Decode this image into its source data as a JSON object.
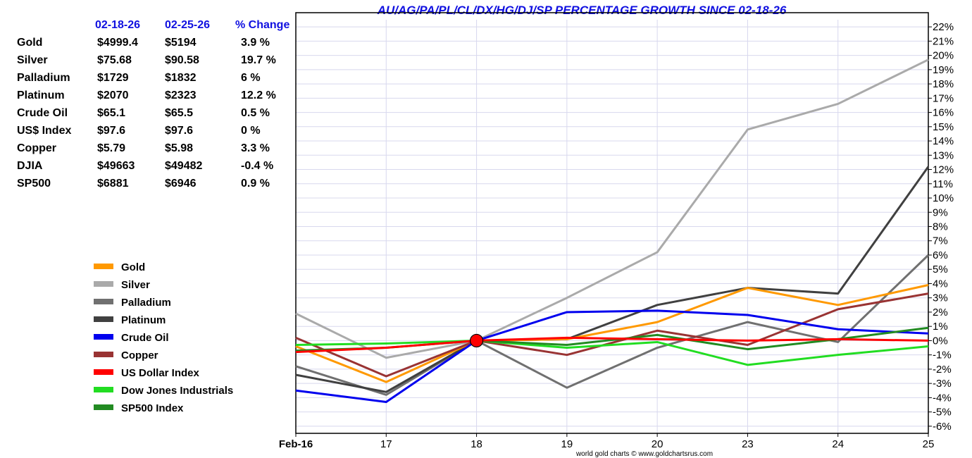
{
  "table": {
    "headers": [
      "02-18-26",
      "02-25-26",
      "% Change"
    ],
    "rows": [
      {
        "name": "Gold",
        "start": "$4999.4",
        "end": "$5194",
        "change": "3.9 %"
      },
      {
        "name": "Silver",
        "start": "$75.68",
        "end": "$90.58",
        "change": "19.7 %"
      },
      {
        "name": "Palladium",
        "start": "$1729",
        "end": "$1832",
        "change": "6 %"
      },
      {
        "name": "Platinum",
        "start": "$2070",
        "end": "$2323",
        "change": "12.2 %"
      },
      {
        "name": "Crude Oil",
        "start": "$65.1",
        "end": "$65.5",
        "change": "0.5 %"
      },
      {
        "name": "US$ Index",
        "start": "$97.6",
        "end": "$97.6",
        "change": "0 %"
      },
      {
        "name": "Copper",
        "start": "$5.79",
        "end": "$5.98",
        "change": "3.3 %"
      },
      {
        "name": "DJIA",
        "start": "$49663",
        "end": "$49482",
        "change": "-0.4 %"
      },
      {
        "name": "SP500",
        "start": "$6881",
        "end": "$6946",
        "change": "0.9 %"
      }
    ]
  },
  "credit": "world gold charts © www.goldchartsrus.com",
  "chart_data": {
    "type": "line",
    "title": "AU/AG/PA/PL/CL/DX/HG/DJ/SP PERCENTAGE GROWTH SINCE 02-18-26",
    "categories": [
      "Feb-16",
      "17",
      "18",
      "19",
      "20",
      "23",
      "24",
      "25"
    ],
    "xlabel": "",
    "ylabel": "",
    "ylim": [
      -6.5,
      22.5
    ],
    "yticks": [
      22,
      21,
      20,
      19,
      18,
      17,
      16,
      15,
      14,
      13,
      12,
      11,
      10,
      9,
      8,
      7,
      6,
      5,
      4,
      3,
      2,
      1,
      0,
      -1,
      -2,
      -3,
      -4,
      -5,
      -6
    ],
    "grid": true,
    "legend_position": "left",
    "marker": {
      "category": "18",
      "value": 0,
      "color": "#ff0000"
    },
    "series": [
      {
        "name": "Silver",
        "color": "#aaaaaa",
        "values": [
          1.9,
          -1.2,
          0,
          3.0,
          6.2,
          14.8,
          16.6,
          19.7
        ]
      },
      {
        "name": "Palladium",
        "color": "#707070",
        "values": [
          -1.8,
          -3.8,
          0,
          -3.3,
          -0.5,
          1.3,
          -0.1,
          6.0
        ]
      },
      {
        "name": "Platinum",
        "color": "#404040",
        "values": [
          -2.4,
          -3.6,
          0,
          0.1,
          2.5,
          3.7,
          3.3,
          12.2
        ]
      },
      {
        "name": "Gold",
        "color": "#ff9900",
        "values": [
          -0.4,
          -2.9,
          0,
          0.1,
          1.3,
          3.7,
          2.5,
          3.9
        ]
      },
      {
        "name": "Copper",
        "color": "#993333",
        "values": [
          0.2,
          -2.5,
          0,
          -1.0,
          0.7,
          -0.3,
          2.2,
          3.3
        ]
      },
      {
        "name": "Crude Oil",
        "color": "#0000ee",
        "values": [
          -3.5,
          -4.3,
          0,
          2.0,
          2.1,
          1.8,
          0.8,
          0.5
        ]
      },
      {
        "name": "Dow Jones Industrials",
        "color": "#22dd22",
        "values": [
          -0.3,
          -0.2,
          0,
          -0.5,
          -0.1,
          -1.7,
          -1.0,
          -0.4
        ]
      },
      {
        "name": "SP500 Index",
        "color": "#228b22",
        "values": [
          -0.7,
          -0.5,
          0,
          -0.3,
          0.4,
          -0.6,
          0.1,
          0.9
        ]
      },
      {
        "name": "US Dollar Index",
        "color": "#ff0000",
        "values": [
          -0.8,
          -0.5,
          0,
          0.2,
          0.1,
          0.0,
          0.1,
          0.0
        ]
      }
    ],
    "legend_order": [
      "Gold",
      "Silver",
      "Palladium",
      "Platinum",
      "Crude Oil",
      "Copper",
      "US Dollar Index",
      "Dow Jones Industrials",
      "SP500 Index"
    ]
  }
}
